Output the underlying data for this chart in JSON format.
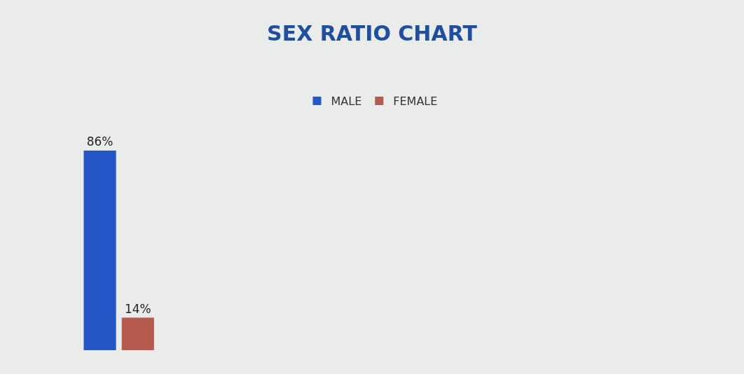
{
  "chart_data": {
    "type": "bar",
    "title": "SEX RATIO CHART",
    "categories": [
      null
    ],
    "series": [
      {
        "name": "MALE",
        "color": "#2457c5",
        "values": [
          86
        ],
        "value_labels": [
          "86%"
        ]
      },
      {
        "name": "FEMALE",
        "color": "#b55a4e",
        "values": [
          14
        ],
        "value_labels": [
          "14%"
        ]
      }
    ],
    "legend": "top"
  }
}
